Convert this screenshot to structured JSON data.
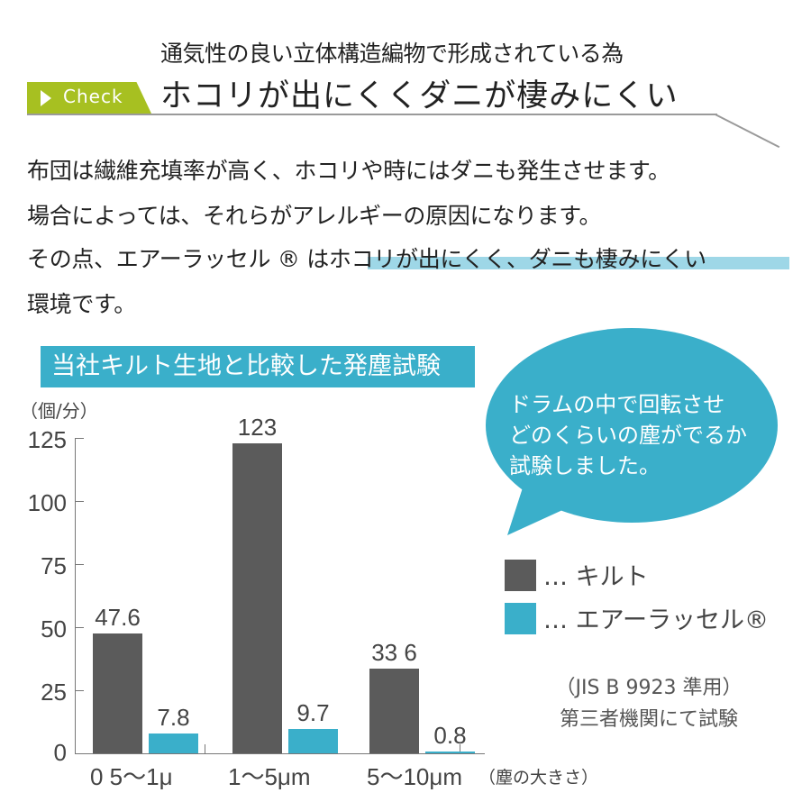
{
  "header": {
    "subheading": "通気性の良い立体構造編物で形成されている為",
    "badge_label": "Check",
    "headline": "ホコリが出にくくダニが棲みにくい"
  },
  "body": {
    "lines": [
      "布団は繊維充填率が高く、ホコリや時にはダニも発生させます。",
      "場合によっては、それらがアレルギーの原因になります。",
      "その点、エアーラッセル ® はホコリが出にくく、ダニも棲みにくい",
      "環境です。"
    ],
    "highlighted_phrase": "ホコリが出にくく、ダニも棲みにくい"
  },
  "speech_bubble": {
    "lines": [
      "ドラムの中で回転させ",
      "どのくらいの塵がでるか",
      "試験しました。"
    ]
  },
  "notes": {
    "standard": "（JIS B 9923 準用）",
    "tested_by": "第三者機関にて試験"
  },
  "colors": {
    "badge_green": "#a7c021",
    "accent_blue": "#3aafca",
    "bar_gray": "#5b5b5b",
    "highlight_blue": "#8dd0e3"
  },
  "chart_data": {
    "type": "bar",
    "title": "当社キルト生地と比較した発塵試験",
    "ylabel": "（個/分）",
    "xlabel": "（塵の大きさ）",
    "categories": [
      "0 5〜1μ",
      "1〜5μm",
      "5〜10μm"
    ],
    "series": [
      {
        "name": "… キルト",
        "color": "#5b5b5b",
        "values": [
          47.6,
          123,
          33.6
        ],
        "labels": [
          "47.6",
          "123",
          "33 6"
        ]
      },
      {
        "name": "… エアーラッセル®",
        "color": "#3aafca",
        "values": [
          7.8,
          9.7,
          0.8
        ],
        "labels": [
          "7.8",
          "9.7",
          "0.8"
        ]
      }
    ],
    "yticks": [
      "125",
      "100",
      "75",
      "50",
      "25",
      "0"
    ],
    "ylim": [
      0,
      125
    ],
    "grid": false,
    "legend_position": "right"
  }
}
